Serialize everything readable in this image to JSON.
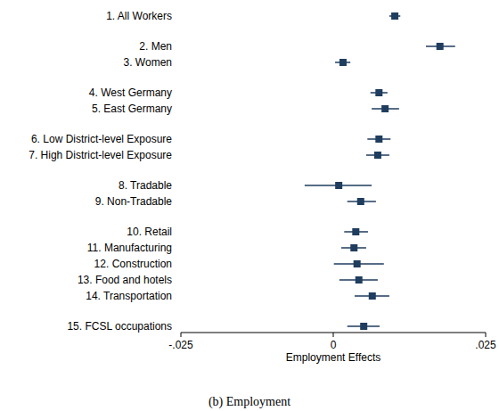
{
  "chart_data": {
    "type": "dot",
    "orientation": "horizontal",
    "title": "(b) Employment",
    "x_label": "Employment Effects",
    "categories": [
      "1. All Workers",
      "2. Men",
      "3. Women",
      "4. West Germany",
      "5. East Germany",
      "6. Low District-level Exposure",
      "7. High District-level Exposure",
      "8. Tradable",
      "9. Non-Tradable",
      "10. Retail",
      "11. Manufacturing",
      "12. Construction",
      "13. Food and hotels",
      "14. Transportation",
      "15. FCSL occupations"
    ],
    "values": [
      0.0101,
      0.0175,
      0.0016,
      0.0075,
      0.0085,
      0.0075,
      0.0073,
      0.0009,
      0.0045,
      0.0037,
      0.0034,
      0.0039,
      0.0042,
      0.0064,
      0.005
    ],
    "ci_low": [
      0.0092,
      0.0152,
      0.0003,
      0.0061,
      0.0063,
      0.0056,
      0.0054,
      -0.0047,
      0.0023,
      0.0018,
      0.0013,
      0.0001,
      0.001,
      0.0035,
      0.0023
    ],
    "ci_high": [
      0.011,
      0.02,
      0.0028,
      0.0089,
      0.0108,
      0.0094,
      0.0092,
      0.0063,
      0.007,
      0.0057,
      0.0054,
      0.0083,
      0.0073,
      0.0092,
      0.0076
    ],
    "color": "#1f3d5e",
    "marker": "square",
    "xlim": [
      -0.025,
      0.025
    ],
    "xticks": [
      {
        "value": -0.025,
        "label": "-.025"
      },
      0,
      {
        "value": 0.025,
        "label": ".025"
      }
    ],
    "grid": false
  }
}
